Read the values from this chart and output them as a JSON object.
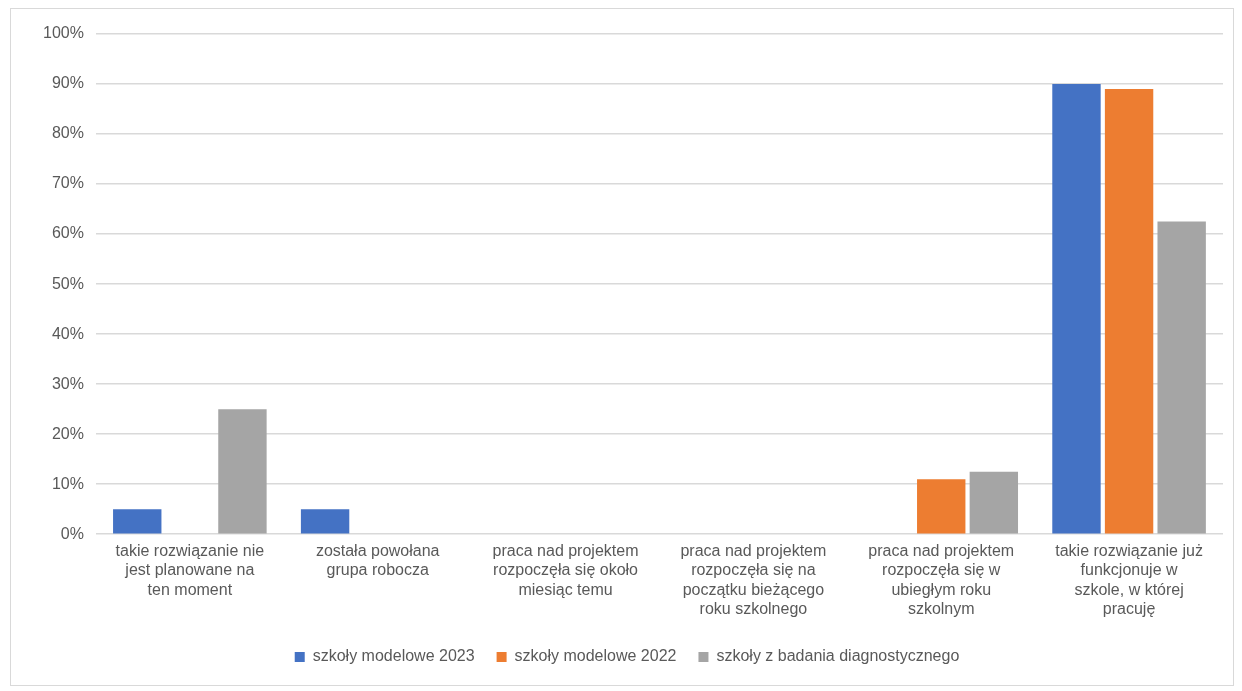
{
  "chart_data": {
    "type": "bar",
    "categories": [
      "takie rozwiązanie nie jest planowane na ten moment",
      "została powołana grupa robocza",
      "praca nad projektem rozpoczęła się około miesiąc temu",
      "praca nad projektem rozpoczęła się na początku bieżącego roku szkolnego",
      "praca nad projektem rozpoczęła się w ubiegłym roku szkolnym",
      "takie rozwiązanie już funkcjonuje w szkole, w której pracuję"
    ],
    "series": [
      {
        "name": "szkoły modelowe 2023",
        "color": "#4472c4",
        "values": [
          5,
          5,
          0,
          0,
          0,
          90
        ]
      },
      {
        "name": "szkoły modelowe 2022",
        "color": "#ed7d31",
        "values": [
          0,
          0,
          0,
          0,
          11,
          89
        ]
      },
      {
        "name": "szkoły z badania diagnostycznego",
        "color": "#a5a5a5",
        "values": [
          25,
          0,
          0,
          0,
          12.5,
          62.5
        ]
      }
    ],
    "ylim": [
      0,
      100
    ],
    "yticks": [
      {
        "value": 0,
        "label": "0%"
      },
      {
        "value": 10,
        "label": "10%"
      },
      {
        "value": 20,
        "label": "20%"
      },
      {
        "value": 30,
        "label": "30%"
      },
      {
        "value": 40,
        "label": "40%"
      },
      {
        "value": 50,
        "label": "50%"
      },
      {
        "value": 60,
        "label": "60%"
      },
      {
        "value": 70,
        "label": "70%"
      },
      {
        "value": 80,
        "label": "80%"
      },
      {
        "value": 90,
        "label": "90%"
      },
      {
        "value": 100,
        "label": "100%"
      }
    ],
    "grid": "y",
    "legend": "bottom"
  }
}
